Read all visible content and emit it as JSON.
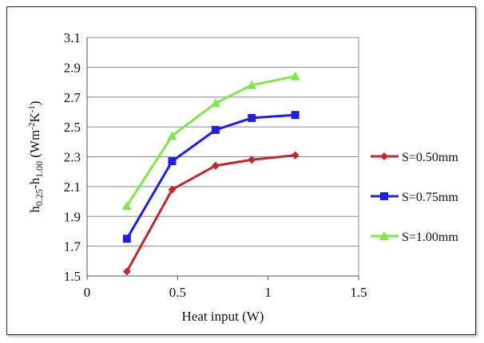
{
  "chart_data": {
    "type": "line",
    "title": "",
    "xlabel": "Heat input (W)",
    "ylabel": {
      "base": "h",
      "sub1": "0.25",
      "dash": "-h",
      "sub2": "1.00",
      "unit_open": " (Wm",
      "sup1": "-2",
      "unit_mid": "K",
      "sup2": "-1",
      "unit_close": ")"
    },
    "xlim": [
      0,
      1.5
    ],
    "ylim": [
      1.5,
      3.1
    ],
    "xticks": [
      "0",
      "0.5",
      "1",
      "1.5"
    ],
    "yticks": [
      "1.5",
      "1.7",
      "1.9",
      "2.1",
      "2.3",
      "2.5",
      "2.7",
      "2.9",
      "3.1"
    ],
    "grid": "horizontal",
    "legend": "right",
    "series": [
      {
        "name": "S=0.50mm",
        "color": "#c0282d",
        "marker": "diamond",
        "x": [
          0.22,
          0.47,
          0.71,
          0.91,
          1.15
        ],
        "y": [
          1.53,
          2.08,
          2.24,
          2.28,
          2.31
        ]
      },
      {
        "name": "S=0.75mm",
        "color": "#1f1fe0",
        "marker": "square",
        "x": [
          0.22,
          0.47,
          0.71,
          0.91,
          1.15
        ],
        "y": [
          1.75,
          2.27,
          2.48,
          2.56,
          2.58
        ]
      },
      {
        "name": "S=1.00mm",
        "color": "#7ee84a",
        "marker": "triangle",
        "x": [
          0.22,
          0.47,
          0.71,
          0.91,
          1.15
        ],
        "y": [
          1.97,
          2.44,
          2.66,
          2.78,
          2.84
        ]
      }
    ]
  }
}
